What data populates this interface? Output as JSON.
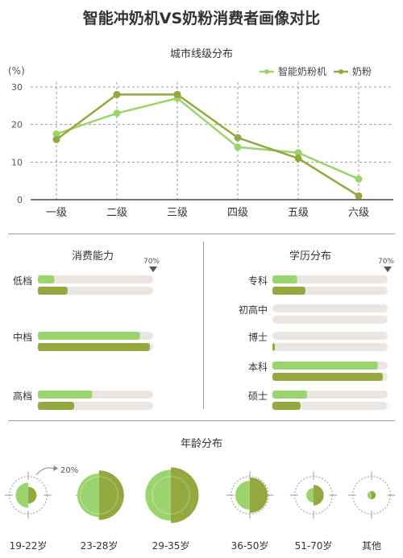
{
  "title": "智能冲奶机VS奶粉消费者画像对比",
  "colors": {
    "light": "#9bd46e",
    "dark": "#93a83f",
    "track": "#ebe6e2",
    "grid": "#999999",
    "axis": "#444444"
  },
  "line_section": {
    "title": "城市线级分布"
  },
  "consumption_section": {
    "title": "消费能力",
    "marker": "70%"
  },
  "education_section": {
    "title": "学历分布",
    "marker": "70%"
  },
  "age_section": {
    "title": "年龄分布",
    "annotation": "20%"
  },
  "chart_data": [
    {
      "type": "line",
      "title": "城市线级分布",
      "ylabel": "(%)",
      "categories": [
        "一级",
        "二级",
        "三级",
        "四级",
        "五级",
        "六级"
      ],
      "yticks": [
        0,
        10,
        20,
        30
      ],
      "ylim": [
        0,
        30
      ],
      "grid": true,
      "legend": "top-right",
      "series": [
        {
          "name": "智能奶粉机",
          "color": "#9bd46e",
          "values": [
            17.5,
            23,
            27,
            14,
            12.5,
            5.5
          ]
        },
        {
          "name": "奶粉",
          "color": "#93a83f",
          "values": [
            16,
            28,
            28,
            16.5,
            11,
            1
          ]
        }
      ]
    },
    {
      "type": "bar",
      "title": "消费能力",
      "categories": [
        "低档",
        "中档",
        "高档"
      ],
      "xlim": [
        0,
        70
      ],
      "series": [
        {
          "color": "#9bd46e",
          "values": [
            10,
            62,
            33
          ]
        },
        {
          "color": "#93a83f",
          "values": [
            18,
            68,
            22
          ]
        }
      ]
    },
    {
      "type": "bar",
      "title": "学历分布",
      "categories": [
        "专科",
        "初高中",
        "博士",
        "本科",
        "硕士"
      ],
      "xlim": [
        0,
        70
      ],
      "series": [
        {
          "color": "#9bd46e",
          "values": [
            15,
            0,
            0,
            64,
            21
          ]
        },
        {
          "color": "#93a83f",
          "values": [
            20,
            0,
            1,
            67,
            17
          ]
        }
      ]
    },
    {
      "type": "pie",
      "title": "年龄分布",
      "categories": [
        "19-22岁",
        "23-28岁",
        "29-35岁",
        "36-50岁",
        "51-70岁",
        "其他"
      ],
      "reference": 20,
      "series": [
        {
          "color": "#9bd46e",
          "values": [
            9,
            27,
            37,
            12,
            3,
            1
          ]
        },
        {
          "color": "#93a83f",
          "values": [
            4,
            35,
            44,
            18,
            6,
            1
          ]
        }
      ]
    }
  ]
}
